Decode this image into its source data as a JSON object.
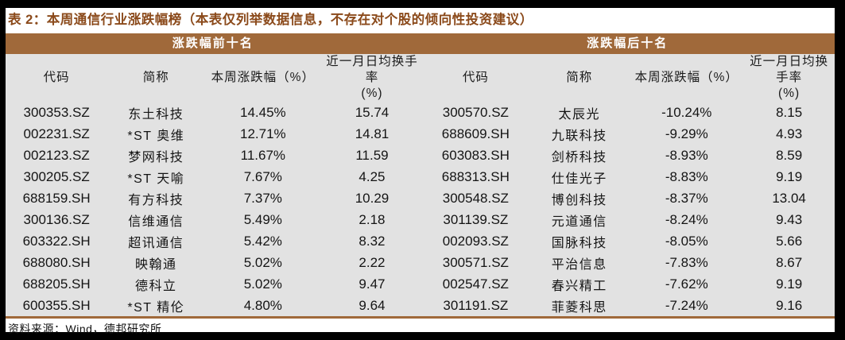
{
  "figure": {
    "title": "表 2：本周通信行业涨跌幅榜（本表仅列举数据信息，不存在对个股的倾向性投资建议）",
    "source": "资料来源：Wind，德邦研究所"
  },
  "colors": {
    "band": "#A0693A",
    "title_text": "#8B4A1B",
    "table_bg": "#E2E2E2",
    "rule": "#A0693A",
    "frame": "#000000"
  },
  "chart_data": {
    "type": "table",
    "sections": [
      {
        "band": "涨跌幅前十名",
        "columns": [
          "代码",
          "简称",
          "本周涨跌幅（%）",
          "近一月日均换手率\n(%)"
        ],
        "rows": [
          [
            "300353.SZ",
            "东土科技",
            "14.45%",
            "15.74"
          ],
          [
            "002231.SZ",
            "*ST 奥维",
            "12.71%",
            "14.81"
          ],
          [
            "002123.SZ",
            "梦网科技",
            "11.67%",
            "11.59"
          ],
          [
            "300205.SZ",
            "*ST 天喻",
            "7.67%",
            "4.25"
          ],
          [
            "688159.SH",
            "有方科技",
            "7.37%",
            "10.29"
          ],
          [
            "300136.SZ",
            "信维通信",
            "5.49%",
            "2.18"
          ],
          [
            "603322.SH",
            "超讯通信",
            "5.42%",
            "8.32"
          ],
          [
            "688080.SH",
            "映翰通",
            "5.02%",
            "2.22"
          ],
          [
            "688205.SH",
            "德科立",
            "5.02%",
            "9.47"
          ],
          [
            "600355.SH",
            "*ST 精伦",
            "4.80%",
            "9.64"
          ]
        ]
      },
      {
        "band": "涨跌幅后十名",
        "columns": [
          "代码",
          "简称",
          "本周涨跌幅（%）",
          "近一月日均换手率\n(%)"
        ],
        "rows": [
          [
            "300570.SZ",
            "太辰光",
            "-10.24%",
            "8.15"
          ],
          [
            "688609.SH",
            "九联科技",
            "-9.29%",
            "4.93"
          ],
          [
            "603083.SH",
            "剑桥科技",
            "-8.93%",
            "8.59"
          ],
          [
            "688313.SH",
            "仕佳光子",
            "-8.83%",
            "9.19"
          ],
          [
            "300548.SZ",
            "博创科技",
            "-8.37%",
            "13.04"
          ],
          [
            "301139.SZ",
            "元道通信",
            "-8.24%",
            "9.43"
          ],
          [
            "002093.SZ",
            "国脉科技",
            "-8.05%",
            "5.66"
          ],
          [
            "300571.SZ",
            "平治信息",
            "-7.83%",
            "8.67"
          ],
          [
            "002547.SZ",
            "春兴精工",
            "-7.62%",
            "9.19"
          ],
          [
            "301191.SZ",
            "菲菱科思",
            "-7.24%",
            "9.16"
          ]
        ]
      }
    ]
  }
}
